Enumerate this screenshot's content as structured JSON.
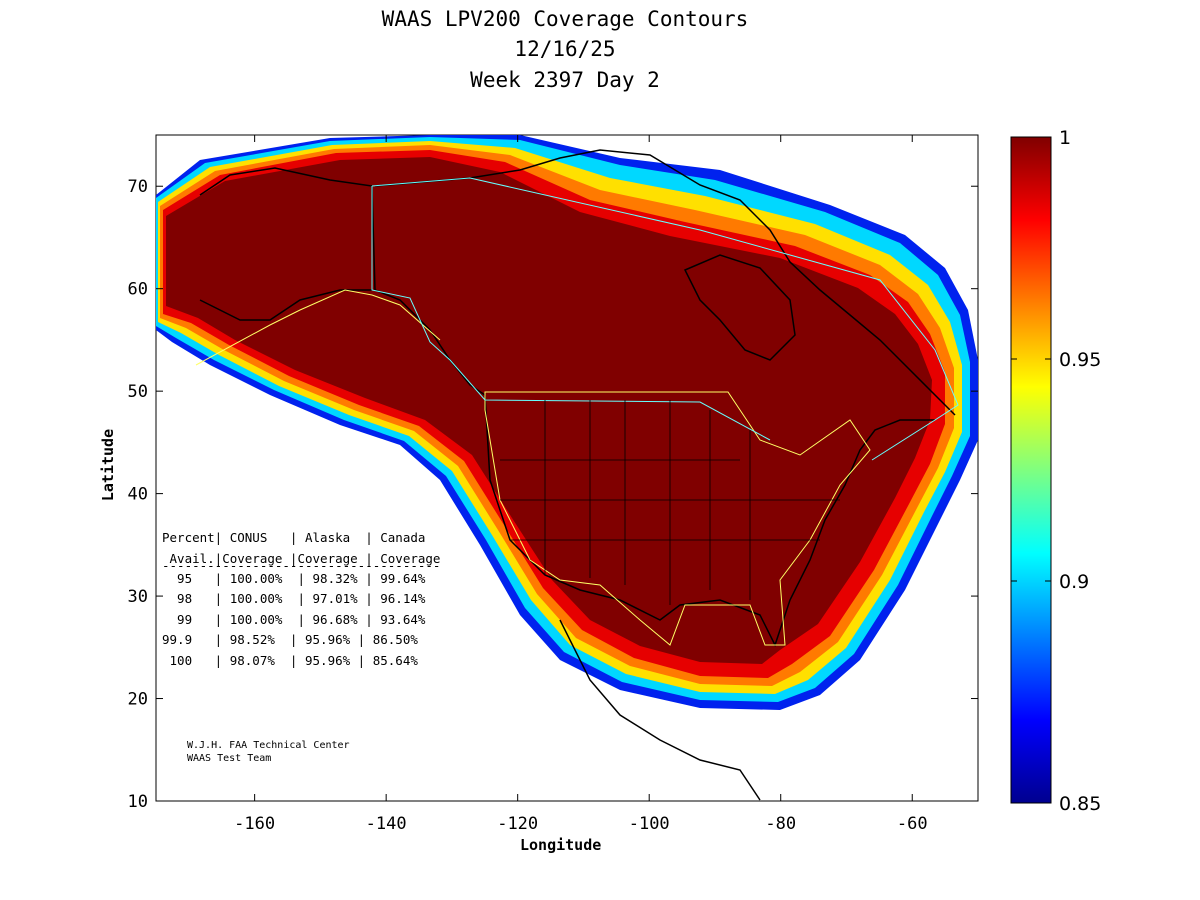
{
  "title": {
    "line1": "WAAS LPV200 Coverage Contours",
    "line2": "12/16/25",
    "line3": "Week 2397 Day 2"
  },
  "axes": {
    "xlabel": "Longitude",
    "ylabel": "Latitude",
    "xlim": [
      -175,
      -50
    ],
    "ylim": [
      10,
      75
    ],
    "xticks": [
      -160,
      -140,
      -120,
      -100,
      -80,
      -60
    ],
    "yticks": [
      10,
      20,
      30,
      40,
      50,
      60,
      70
    ]
  },
  "colorbar": {
    "min": 0.85,
    "max": 1,
    "ticks": [
      "1",
      "0.95",
      "0.9",
      "0.85"
    ]
  },
  "coverage_table": {
    "header1": "Percent| CONUS   | Alaska  | Canada",
    "header2": " Avail.|Coverage |Coverage | Coverage",
    "divider": "-------------------------------------",
    "rows": [
      "  95   | 100.00%  | 98.32% | 99.64%",
      "  98   | 100.00%  | 97.01% | 96.14%",
      "  99   | 100.00%  | 96.68% | 93.64%",
      "99.9   | 98.52%  | 95.96% | 86.50%",
      " 100   | 98.07%  | 95.96% | 85.64%"
    ]
  },
  "credit": {
    "line1": "W.J.H. FAA Technical Center",
    "line2": "WAAS Test Team"
  },
  "chart_data": {
    "type": "heatmap",
    "title": "WAAS LPV200 Coverage Contours 12/16/25 Week 2397 Day 2",
    "xlabel": "Longitude",
    "ylabel": "Latitude",
    "xlim": [
      -175,
      -50
    ],
    "ylim": [
      10,
      75
    ],
    "colorbar_range": [
      0.85,
      1
    ],
    "colormap": "jet",
    "coverage_by_availability": {
      "percent_avail": [
        "95",
        "98",
        "99",
        "99.9",
        "100"
      ],
      "conus": [
        "100.00%",
        "100.00%",
        "100.00%",
        "98.52%",
        "98.07%"
      ],
      "alaska": [
        "98.32%",
        "97.01%",
        "96.68%",
        "95.96%",
        "95.96%"
      ],
      "canada": [
        "99.64%",
        "96.14%",
        "93.64%",
        "86.50%",
        "85.64%"
      ]
    }
  }
}
